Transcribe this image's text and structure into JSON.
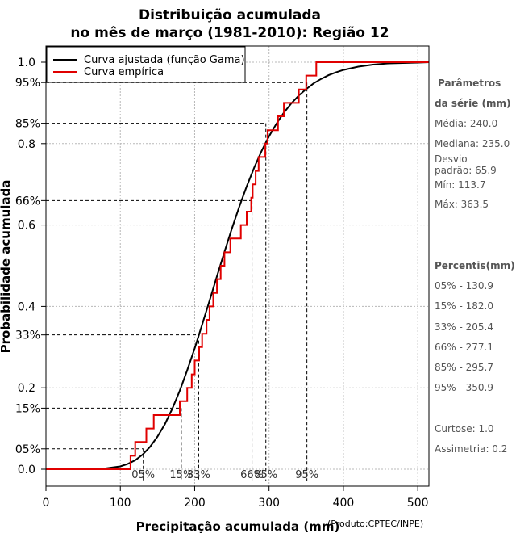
{
  "chart_data": {
    "type": "line",
    "title": [
      "Distribuição acumulada",
      "no mês de março (1981-2010): Região 12"
    ],
    "xlabel": "Precipitação acumulada (mm)",
    "ylabel": "Probabilidade acumulada",
    "credit": "(Produto:CPTEC/INPE)",
    "xlim": [
      0,
      515
    ],
    "ylim": [
      0,
      1
    ],
    "grid": true,
    "x_ticks": [
      0,
      100,
      200,
      300,
      400,
      500
    ],
    "x_tick_labels": [
      "0",
      "100",
      "200",
      "300",
      "400",
      "500"
    ],
    "y_ticks": [
      0.0,
      0.2,
      0.4,
      0.6,
      0.8,
      1.0
    ],
    "y_tick_labels": [
      "0.0",
      "0.2",
      "0.4",
      "0.6",
      "0.8",
      "1.0"
    ],
    "percent_ticks": [
      0.05,
      0.15,
      0.33,
      0.66,
      0.85,
      0.95
    ],
    "percent_tick_labels": [
      "05%",
      "15%",
      "33%",
      "66%",
      "85%",
      "95%"
    ],
    "legend": {
      "position": "top-left",
      "items": [
        {
          "label": "Curva ajustada (função Gama)",
          "color": "#000000"
        },
        {
          "label": "Curva empírica",
          "color": "#e00000"
        }
      ]
    },
    "percentile_markers": [
      {
        "label": "05%",
        "p": 0.05,
        "x": 130.9
      },
      {
        "label": "15%",
        "p": 0.15,
        "x": 182.0
      },
      {
        "label": "33%",
        "p": 0.33,
        "x": 205.4
      },
      {
        "label": "66%",
        "p": 0.66,
        "x": 277.1
      },
      {
        "label": "85%",
        "p": 0.85,
        "x": 295.7
      },
      {
        "label": "95%",
        "p": 0.95,
        "x": 350.9
      }
    ],
    "fitted_curve": {
      "name": "Curva ajustada (função Gama)",
      "x": [
        0,
        60,
        80,
        100,
        110,
        120,
        130,
        140,
        150,
        160,
        170,
        180,
        190,
        200,
        210,
        220,
        230,
        240,
        250,
        260,
        270,
        280,
        290,
        300,
        310,
        320,
        330,
        340,
        350,
        360,
        370,
        380,
        390,
        400,
        420,
        440,
        460,
        480,
        500,
        515
      ],
      "y": [
        0.0,
        0.0,
        0.002,
        0.007,
        0.013,
        0.022,
        0.036,
        0.055,
        0.08,
        0.111,
        0.149,
        0.193,
        0.243,
        0.297,
        0.355,
        0.414,
        0.474,
        0.534,
        0.591,
        0.645,
        0.695,
        0.741,
        0.782,
        0.818,
        0.849,
        0.876,
        0.899,
        0.918,
        0.934,
        0.948,
        0.959,
        0.968,
        0.975,
        0.981,
        0.989,
        0.994,
        0.997,
        0.998,
        0.999,
        1.0
      ]
    },
    "empirical_curve": {
      "name": "Curva empírica",
      "x": [
        113.7,
        120,
        135,
        145,
        180,
        190,
        196,
        200,
        206,
        210,
        216,
        220,
        225,
        230,
        235,
        240,
        248,
        262,
        270,
        276,
        278,
        282,
        286,
        295,
        298,
        312,
        320,
        340,
        350,
        363.5
      ],
      "y": [
        0.033,
        0.067,
        0.1,
        0.133,
        0.167,
        0.2,
        0.233,
        0.267,
        0.3,
        0.333,
        0.367,
        0.4,
        0.433,
        0.467,
        0.5,
        0.533,
        0.567,
        0.6,
        0.633,
        0.667,
        0.7,
        0.733,
        0.767,
        0.8,
        0.833,
        0.867,
        0.9,
        0.933,
        0.967,
        1.0
      ]
    }
  },
  "sidebar": {
    "params_heading": "Parâmetros",
    "params_heading2": "da série (mm)",
    "media": "Média: 240.0",
    "mediana": "Mediana: 235.0",
    "desvio1": "Desvio",
    "desvio2": "padrão: 65.9",
    "min": "Mín: 113.7",
    "max": "Máx: 363.5",
    "percentis_heading": "Percentis(mm)",
    "p05": "05% - 130.9",
    "p15": "15% - 182.0",
    "p33": "33% - 205.4",
    "p66": "66% - 277.1",
    "p85": "85% - 295.7",
    "p95": "95% - 350.9",
    "curtose": "Curtose: 1.0",
    "assimetria": "Assimetria: 0.2"
  }
}
